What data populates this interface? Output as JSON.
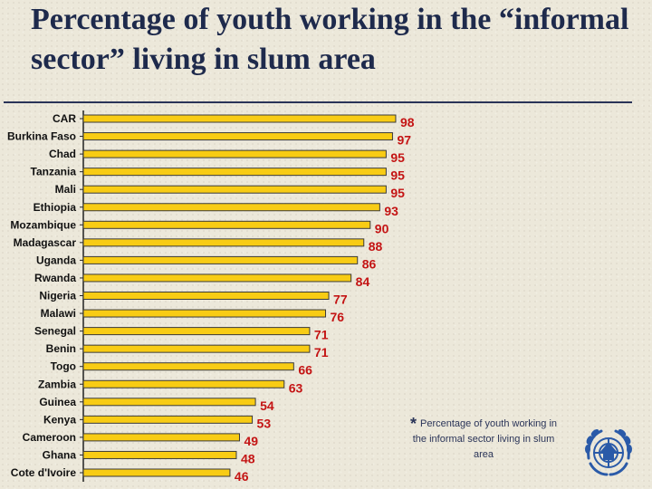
{
  "title": "Percentage of youth working in the “informal sector” living in slum area",
  "note": {
    "symbol": "*",
    "text": "Percentage of youth working in the informal sector living in slum area"
  },
  "logo": {
    "icon": "un-habitat-emblem-icon"
  },
  "colors": {
    "bar_fill": "#f8cc14",
    "bar_stroke": "#3a3a3a",
    "value_label": "#c41414",
    "title": "#1e2a4c"
  },
  "chart_data": {
    "type": "bar",
    "orientation": "horizontal",
    "categories": [
      "CAR",
      "Burkina Faso",
      "Chad",
      "Tanzania",
      "Mali",
      "Ethiopia",
      "Mozambique",
      "Madagascar",
      "Uganda",
      "Rwanda",
      "Nigeria",
      "Malawi",
      "Senegal",
      "Benin",
      "Togo",
      "Zambia",
      "Guinea",
      "Kenya",
      "Cameroon",
      "Ghana",
      "Cote d'Ivoire"
    ],
    "values": [
      98,
      97,
      95,
      95,
      95,
      93,
      90,
      88,
      86,
      84,
      77,
      76,
      71,
      71,
      66,
      63,
      54,
      53,
      49,
      48,
      46
    ],
    "xlim": [
      0,
      100
    ],
    "grid": false,
    "data_labels": true
  }
}
